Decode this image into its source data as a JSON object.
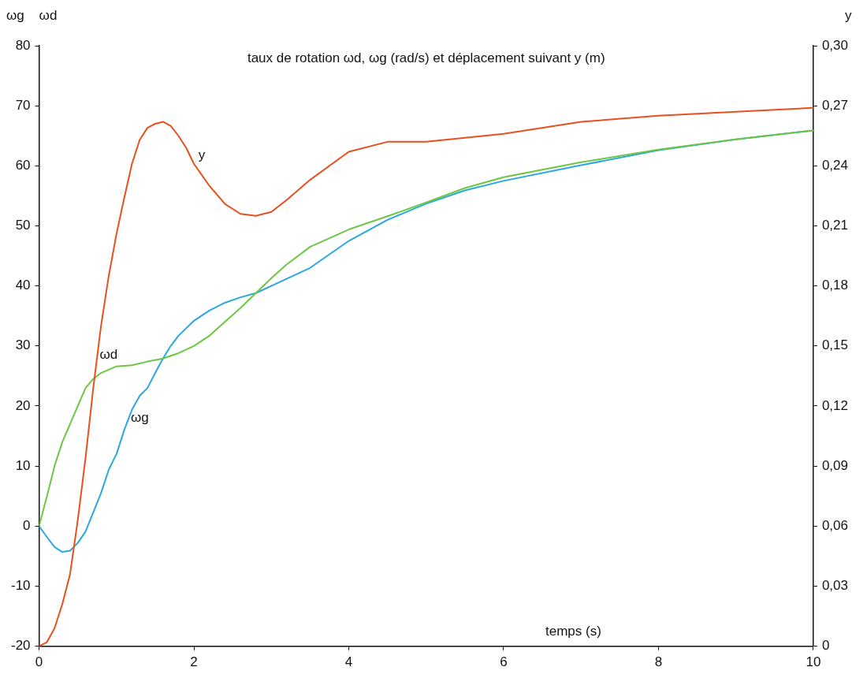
{
  "chart_data": {
    "type": "line",
    "title": "taux de rotation ωd, ωg (rad/s) et déplacement suivant y (m)",
    "xlabel": "temps (s)",
    "ylabel": "ωg    ωd",
    "y2label": "y",
    "xlim": [
      0,
      10
    ],
    "xticks": [
      0,
      2,
      4,
      6,
      8,
      10
    ],
    "ylim": [
      -20,
      80
    ],
    "yticks": [
      -20,
      -10,
      0,
      10,
      20,
      30,
      40,
      50,
      60,
      70,
      80
    ],
    "y2lim": [
      0,
      0.3
    ],
    "y2ticks": [
      0,
      {
        "value": 0.03,
        "label": "0,03"
      },
      {
        "value": 0.06,
        "label": "0,06"
      },
      {
        "value": 0.09,
        "label": "0,09"
      },
      {
        "value": 0.12,
        "label": "0,12"
      },
      {
        "value": 0.15,
        "label": "0,15"
      },
      {
        "value": 0.18,
        "label": "0,18"
      },
      {
        "value": 0.21,
        "label": "0,21"
      },
      {
        "value": 0.24,
        "label": "0,24"
      },
      {
        "value": 0.27,
        "label": "0,27"
      },
      {
        "value": 0.3,
        "label": "0,30"
      }
    ],
    "grid": false,
    "legend": false,
    "marker": "none",
    "line_style": "solid",
    "series": [
      {
        "name": "y",
        "color": "#e8501e",
        "axis": "y2",
        "x": [
          0,
          0.1,
          0.2,
          0.3,
          0.4,
          0.5,
          0.6,
          0.7,
          0.8,
          0.9,
          1.0,
          1.1,
          1.2,
          1.3,
          1.4,
          1.5,
          1.6,
          1.7,
          1.8,
          1.9,
          2.0,
          2.2,
          2.4,
          2.6,
          2.8,
          3.0,
          3.2,
          3.5,
          4.0,
          4.5,
          5.0,
          5.5,
          6.0,
          7.0,
          8.0,
          9.0,
          10
        ],
        "values": [
          0,
          0.002,
          0.009,
          0.021,
          0.036,
          0.063,
          0.094,
          0.129,
          0.16,
          0.185,
          0.206,
          0.224,
          0.241,
          0.253,
          0.259,
          0.261,
          0.262,
          0.26,
          0.255,
          0.249,
          0.241,
          0.23,
          0.221,
          0.216,
          0.215,
          0.217,
          0.223,
          0.233,
          0.247,
          0.252,
          0.252,
          0.254,
          0.256,
          0.262,
          0.265,
          0.267,
          0.269
        ]
      },
      {
        "name": "ωd",
        "color": "#6cc644",
        "x": [
          0,
          0.1,
          0.2,
          0.3,
          0.4,
          0.5,
          0.6,
          0.7,
          0.8,
          1.0,
          1.2,
          1.4,
          1.6,
          1.8,
          2.0,
          2.2,
          2.4,
          2.6,
          2.8,
          3.0,
          3.2,
          3.5,
          4.0,
          4.5,
          5.0,
          5.5,
          6.0,
          7.0,
          8.0,
          9.0,
          10
        ],
        "values": [
          0,
          4.9,
          10,
          14,
          17,
          20,
          23,
          24.5,
          25.5,
          26.6,
          26.8,
          27.4,
          27.9,
          28.8,
          30,
          31.7,
          34,
          36.3,
          38.8,
          41.3,
          43.6,
          46.5,
          49.4,
          51.6,
          53.9,
          56.3,
          58.1,
          60.6,
          62.7,
          64.4,
          65.9
        ]
      },
      {
        "name": "ωg",
        "color": "#29a8e0",
        "x": [
          0,
          0.1,
          0.2,
          0.3,
          0.4,
          0.5,
          0.6,
          0.7,
          0.8,
          0.9,
          1.0,
          1.1,
          1.2,
          1.3,
          1.4,
          1.5,
          1.6,
          1.7,
          1.8,
          2.0,
          2.2,
          2.4,
          2.6,
          2.8,
          3.0,
          3.5,
          4.0,
          4.5,
          5.0,
          5.5,
          6.0,
          7.0,
          8.0,
          9.0,
          10
        ],
        "values": [
          0,
          -1.8,
          -3.5,
          -4.3,
          -4.1,
          -2.8,
          -0.9,
          2.3,
          5.5,
          9.4,
          12,
          16,
          19.4,
          21.7,
          23,
          25.5,
          27.9,
          30,
          31.7,
          34.2,
          35.9,
          37.2,
          38.1,
          38.8,
          40,
          43,
          47.5,
          51,
          53.7,
          55.9,
          57.5,
          60.1,
          62.6,
          64.4,
          65.9
        ]
      }
    ]
  }
}
